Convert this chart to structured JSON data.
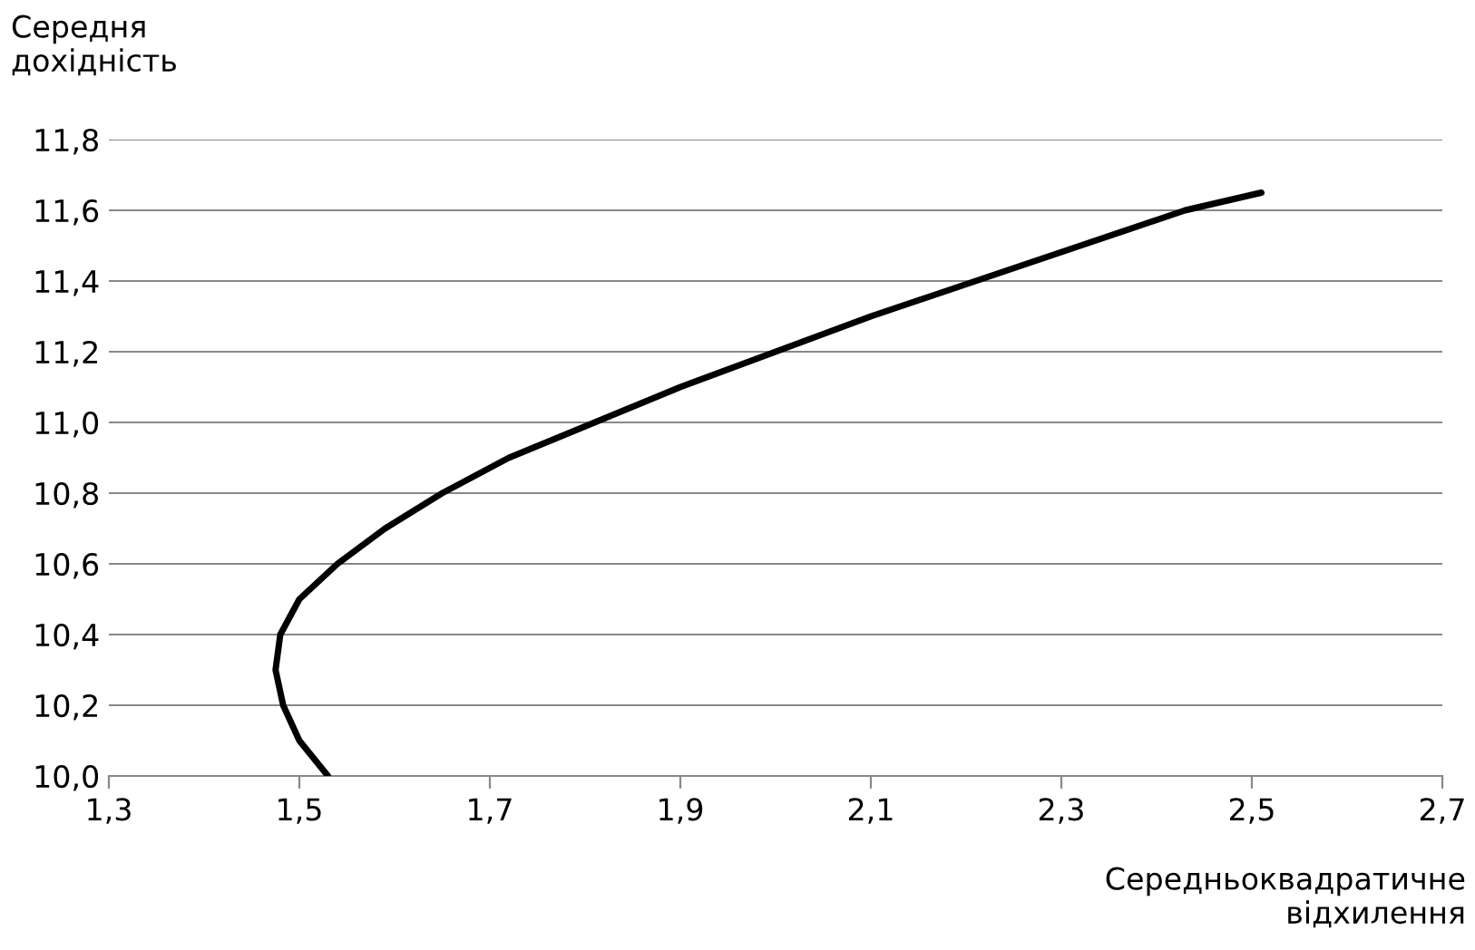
{
  "chart_data": {
    "type": "line",
    "xlabel": "Середньоквадратичне\nвідхилення",
    "ylabel": "Середня\nдохідність",
    "x": [
      1.53,
      1.5,
      1.483,
      1.475,
      1.48,
      1.5,
      1.54,
      1.59,
      1.65,
      1.72,
      1.81,
      1.9,
      2.0,
      2.1,
      2.21,
      2.32,
      2.43,
      2.51
    ],
    "series": [
      {
        "color": "#000000",
        "values": [
          10.0,
          10.1,
          10.2,
          10.3,
          10.4,
          10.5,
          10.6,
          10.7,
          10.8,
          10.9,
          11.0,
          11.1,
          11.2,
          11.3,
          11.4,
          11.5,
          11.6,
          11.65
        ]
      }
    ],
    "xlim": [
      1.3,
      2.7
    ],
    "xticks": [
      {
        "value": 1.3,
        "label": "1,3"
      },
      {
        "value": 1.5,
        "label": "1,5"
      },
      {
        "value": 1.7,
        "label": "1,7"
      },
      {
        "value": 1.9,
        "label": "1,9"
      },
      {
        "value": 2.1,
        "label": "2,1"
      },
      {
        "value": 2.3,
        "label": "2,3"
      },
      {
        "value": 2.5,
        "label": "2,5"
      },
      {
        "value": 2.7,
        "label": "2,7"
      }
    ],
    "ylim": [
      10.0,
      11.8
    ],
    "yticks": [
      {
        "value": 10.0,
        "label": "10,0"
      },
      {
        "value": 10.2,
        "label": "10,2"
      },
      {
        "value": 10.4,
        "label": "10,4"
      },
      {
        "value": 10.6,
        "label": "10,6"
      },
      {
        "value": 10.8,
        "label": "10,8"
      },
      {
        "value": 11.0,
        "label": "11,0"
      },
      {
        "value": 11.2,
        "label": "11,2"
      },
      {
        "value": 11.4,
        "label": "11,4"
      },
      {
        "value": 11.6,
        "label": "11,6"
      },
      {
        "value": 11.8,
        "label": "11,8"
      }
    ],
    "grid": "y",
    "marker": "none",
    "line_style": "solid"
  }
}
